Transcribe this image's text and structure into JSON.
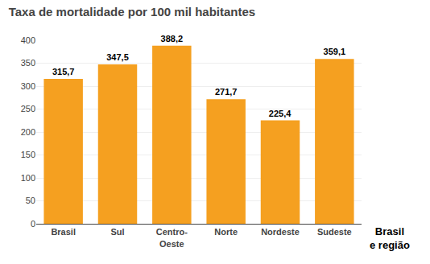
{
  "chart_data": {
    "type": "bar",
    "title": "Taxa de mortalidade por 100 mil habitantes",
    "categories": [
      "Brasil",
      "Sul",
      "Centro-\nOeste",
      "Norte",
      "Nordeste",
      "Sudeste"
    ],
    "values": [
      315.7,
      347.5,
      388.2,
      271.7,
      225.4,
      359.1
    ],
    "value_labels": [
      "315,7",
      "347,5",
      "388,2",
      "271,7",
      "225,4",
      "359,1"
    ],
    "data_labels": true,
    "color": "#F5A020",
    "xlabel": "Brasil\ne região",
    "ylim": [
      0,
      400
    ],
    "yticks": [
      0,
      50,
      100,
      150,
      200,
      250,
      300,
      350,
      400
    ],
    "grid": true
  }
}
